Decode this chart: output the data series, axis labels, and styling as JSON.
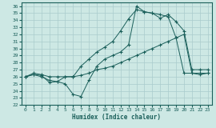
{
  "xlabel": "Humidex (Indice chaleur)",
  "ylabel": "",
  "background_color": "#cde8e4",
  "grid_color": "#aacccc",
  "line_color": "#1a5f5a",
  "xlim": [
    -0.5,
    23.5
  ],
  "ylim": [
    22,
    36.5
  ],
  "xticks": [
    0,
    1,
    2,
    3,
    4,
    5,
    6,
    7,
    8,
    9,
    10,
    11,
    12,
    13,
    14,
    15,
    16,
    17,
    18,
    19,
    20,
    21,
    22,
    23
  ],
  "yticks": [
    22,
    23,
    24,
    25,
    26,
    27,
    28,
    29,
    30,
    31,
    32,
    33,
    34,
    35,
    36
  ],
  "series": [
    {
      "x": [
        0,
        1,
        2,
        3,
        4,
        5,
        6,
        7,
        8,
        9,
        10,
        11,
        12,
        13,
        14,
        15,
        16,
        17,
        18,
        19,
        20,
        21,
        22,
        23
      ],
      "y": [
        26,
        26.3,
        26.2,
        25.2,
        25.3,
        25.0,
        23.5,
        23.2,
        25.5,
        27.5,
        28.5,
        29.0,
        29.5,
        30.5,
        36.0,
        35.2,
        35.0,
        34.8,
        34.5,
        31.5,
        26.5,
        26.5,
        26.5,
        26.5
      ]
    },
    {
      "x": [
        0,
        1,
        2,
        3,
        4,
        5,
        6,
        7,
        8,
        9,
        10,
        11,
        12,
        13,
        14,
        15,
        16,
        17,
        18,
        19,
        20,
        21,
        22,
        23
      ],
      "y": [
        26,
        26.3,
        26.0,
        25.5,
        25.3,
        26.0,
        26.0,
        27.5,
        28.5,
        29.5,
        30.2,
        31.0,
        32.5,
        34.2,
        35.5,
        35.2,
        35.0,
        34.3,
        34.8,
        33.8,
        32.5,
        27.0,
        27.0,
        27.0
      ]
    },
    {
      "x": [
        0,
        1,
        2,
        3,
        4,
        5,
        6,
        7,
        8,
        9,
        10,
        11,
        12,
        13,
        14,
        15,
        16,
        17,
        18,
        19,
        20,
        21,
        22,
        23
      ],
      "y": [
        26,
        26.5,
        26.3,
        26.0,
        26.0,
        26.0,
        26.0,
        26.2,
        26.5,
        27.0,
        27.2,
        27.5,
        28.0,
        28.5,
        29.0,
        29.5,
        30.0,
        30.5,
        31.0,
        31.5,
        32.0,
        26.5,
        26.3,
        26.5
      ]
    }
  ]
}
